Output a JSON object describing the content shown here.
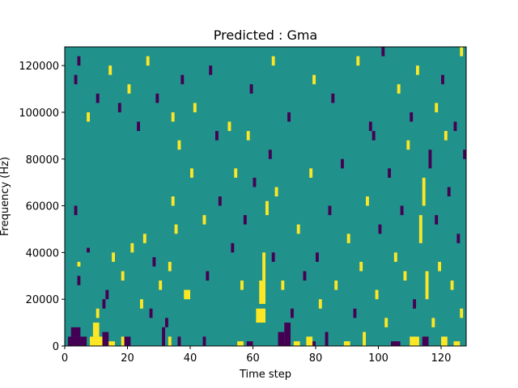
{
  "chart_data": {
    "type": "heatmap",
    "title": "Predicted : Gma",
    "xlabel": "Time step",
    "ylabel": "Frequency (Hz)",
    "xlim": [
      0,
      128
    ],
    "ylim": [
      0,
      128000
    ],
    "x_ticks": [
      0,
      20,
      40,
      60,
      80,
      100,
      120
    ],
    "y_ticks": [
      0,
      20000,
      40000,
      60000,
      80000,
      100000,
      120000
    ],
    "y_tick_labels": [
      "0",
      "20000",
      "40000",
      "60000",
      "80000",
      "100000",
      "120000"
    ],
    "colormap": "viridis",
    "value_levels": [
      -1,
      0,
      1
    ],
    "level_colors": [
      "#440154",
      "#21918c",
      "#fde725"
    ],
    "background_value": 0,
    "grid_cols": 128,
    "grid_rows": 64,
    "row_height_hz": 2000,
    "cells": [
      {
        "x": 1,
        "y": 0,
        "w": 6,
        "h": 2,
        "v": -1
      },
      {
        "x": 2,
        "y": 2,
        "w": 3,
        "h": 2,
        "v": -1
      },
      {
        "x": 8,
        "y": 0,
        "w": 4,
        "h": 2,
        "v": 1
      },
      {
        "x": 9,
        "y": 2,
        "w": 2,
        "h": 3,
        "v": 1
      },
      {
        "x": 12,
        "y": 0,
        "w": 2,
        "h": 3,
        "v": -1
      },
      {
        "x": 14,
        "y": 0,
        "w": 2,
        "h": 1,
        "v": 1
      },
      {
        "x": 18,
        "y": 0,
        "w": 1,
        "h": 2,
        "v": 1
      },
      {
        "x": 19,
        "y": 0,
        "w": 2,
        "h": 2,
        "v": -1
      },
      {
        "x": 31,
        "y": 0,
        "w": 1,
        "h": 4,
        "v": -1
      },
      {
        "x": 33,
        "y": 0,
        "w": 1,
        "h": 2,
        "v": 1
      },
      {
        "x": 36,
        "y": 0,
        "w": 1,
        "h": 2,
        "v": -1
      },
      {
        "x": 44,
        "y": 0,
        "w": 1,
        "h": 2,
        "v": -1
      },
      {
        "x": 55,
        "y": 0,
        "w": 2,
        "h": 1,
        "v": 1
      },
      {
        "x": 58,
        "y": 0,
        "w": 2,
        "h": 1,
        "v": -1
      },
      {
        "x": 61,
        "y": 5,
        "w": 3,
        "h": 3,
        "v": 1
      },
      {
        "x": 62,
        "y": 9,
        "w": 2,
        "h": 5,
        "v": 1
      },
      {
        "x": 63,
        "y": 14,
        "w": 1,
        "h": 6,
        "v": 1
      },
      {
        "x": 68,
        "y": 0,
        "w": 2,
        "h": 3,
        "v": -1
      },
      {
        "x": 70,
        "y": 0,
        "w": 2,
        "h": 5,
        "v": -1
      },
      {
        "x": 73,
        "y": 0,
        "w": 2,
        "h": 1,
        "v": 1
      },
      {
        "x": 77,
        "y": 0,
        "w": 2,
        "h": 2,
        "v": 1
      },
      {
        "x": 79,
        "y": 0,
        "w": 1,
        "h": 1,
        "v": -1
      },
      {
        "x": 83,
        "y": 0,
        "w": 1,
        "h": 3,
        "v": -1
      },
      {
        "x": 89,
        "y": 0,
        "w": 2,
        "h": 1,
        "v": 1
      },
      {
        "x": 95,
        "y": 0,
        "w": 1,
        "h": 3,
        "v": 1
      },
      {
        "x": 104,
        "y": 0,
        "w": 3,
        "h": 1,
        "v": -1
      },
      {
        "x": 110,
        "y": 0,
        "w": 3,
        "h": 2,
        "v": 1
      },
      {
        "x": 114,
        "y": 0,
        "w": 2,
        "h": 2,
        "v": -1
      },
      {
        "x": 120,
        "y": 0,
        "w": 2,
        "h": 2,
        "v": 1
      },
      {
        "x": 124,
        "y": 0,
        "w": 2,
        "h": 1,
        "v": 1
      },
      {
        "x": 4,
        "y": 13,
        "w": 1,
        "h": 2,
        "v": -1
      },
      {
        "x": 4,
        "y": 17,
        "w": 1,
        "h": 1,
        "v": 1
      },
      {
        "x": 7,
        "y": 20,
        "w": 1,
        "h": 1,
        "v": -1
      },
      {
        "x": 3,
        "y": 28,
        "w": 1,
        "h": 2,
        "v": -1
      },
      {
        "x": 10,
        "y": 6,
        "w": 1,
        "h": 2,
        "v": 1
      },
      {
        "x": 12,
        "y": 8,
        "w": 1,
        "h": 2,
        "v": -1
      },
      {
        "x": 13,
        "y": 10,
        "w": 1,
        "h": 2,
        "v": -1
      },
      {
        "x": 15,
        "y": 18,
        "w": 1,
        "h": 2,
        "v": 1
      },
      {
        "x": 18,
        "y": 14,
        "w": 1,
        "h": 2,
        "v": 1
      },
      {
        "x": 21,
        "y": 20,
        "w": 1,
        "h": 2,
        "v": 1
      },
      {
        "x": 24,
        "y": 8,
        "w": 1,
        "h": 2,
        "v": 1
      },
      {
        "x": 25,
        "y": 22,
        "w": 1,
        "h": 2,
        "v": 1
      },
      {
        "x": 27,
        "y": 6,
        "w": 1,
        "h": 2,
        "v": -1
      },
      {
        "x": 28,
        "y": 17,
        "w": 1,
        "h": 2,
        "v": -1
      },
      {
        "x": 30,
        "y": 12,
        "w": 1,
        "h": 2,
        "v": 1
      },
      {
        "x": 32,
        "y": 4,
        "w": 1,
        "h": 2,
        "v": -1
      },
      {
        "x": 33,
        "y": 16,
        "w": 1,
        "h": 2,
        "v": 1
      },
      {
        "x": 34,
        "y": 30,
        "w": 1,
        "h": 2,
        "v": 1
      },
      {
        "x": 35,
        "y": 24,
        "w": 1,
        "h": 2,
        "v": 1
      },
      {
        "x": 36,
        "y": 42,
        "w": 1,
        "h": 2,
        "v": 1
      },
      {
        "x": 38,
        "y": 10,
        "w": 2,
        "h": 2,
        "v": 1
      },
      {
        "x": 40,
        "y": 36,
        "w": 1,
        "h": 2,
        "v": 1
      },
      {
        "x": 44,
        "y": 26,
        "w": 1,
        "h": 2,
        "v": 1
      },
      {
        "x": 45,
        "y": 14,
        "w": 1,
        "h": 2,
        "v": -1
      },
      {
        "x": 48,
        "y": 44,
        "w": 1,
        "h": 2,
        "v": -1
      },
      {
        "x": 49,
        "y": 30,
        "w": 1,
        "h": 2,
        "v": -1
      },
      {
        "x": 53,
        "y": 20,
        "w": 1,
        "h": 2,
        "v": -1
      },
      {
        "x": 54,
        "y": 36,
        "w": 1,
        "h": 2,
        "v": 1
      },
      {
        "x": 56,
        "y": 12,
        "w": 1,
        "h": 2,
        "v": 1
      },
      {
        "x": 57,
        "y": 26,
        "w": 1,
        "h": 2,
        "v": -1
      },
      {
        "x": 58,
        "y": 44,
        "w": 1,
        "h": 2,
        "v": 1
      },
      {
        "x": 60,
        "y": 34,
        "w": 1,
        "h": 2,
        "v": -1
      },
      {
        "x": 64,
        "y": 28,
        "w": 1,
        "h": 3,
        "v": 1
      },
      {
        "x": 65,
        "y": 40,
        "w": 1,
        "h": 2,
        "v": -1
      },
      {
        "x": 66,
        "y": 18,
        "w": 1,
        "h": 2,
        "v": -1
      },
      {
        "x": 67,
        "y": 32,
        "w": 1,
        "h": 2,
        "v": 1
      },
      {
        "x": 69,
        "y": 12,
        "w": 1,
        "h": 2,
        "v": 1
      },
      {
        "x": 72,
        "y": 6,
        "w": 1,
        "h": 2,
        "v": -1
      },
      {
        "x": 74,
        "y": 24,
        "w": 1,
        "h": 2,
        "v": 1
      },
      {
        "x": 76,
        "y": 14,
        "w": 1,
        "h": 2,
        "v": -1
      },
      {
        "x": 78,
        "y": 36,
        "w": 1,
        "h": 2,
        "v": 1
      },
      {
        "x": 80,
        "y": 18,
        "w": 1,
        "h": 2,
        "v": -1
      },
      {
        "x": 81,
        "y": 8,
        "w": 1,
        "h": 2,
        "v": 1
      },
      {
        "x": 84,
        "y": 28,
        "w": 1,
        "h": 2,
        "v": -1
      },
      {
        "x": 86,
        "y": 12,
        "w": 1,
        "h": 2,
        "v": 1
      },
      {
        "x": 88,
        "y": 38,
        "w": 1,
        "h": 2,
        "v": -1
      },
      {
        "x": 90,
        "y": 22,
        "w": 1,
        "h": 2,
        "v": 1
      },
      {
        "x": 92,
        "y": 6,
        "w": 1,
        "h": 2,
        "v": -1
      },
      {
        "x": 94,
        "y": 16,
        "w": 1,
        "h": 2,
        "v": 1
      },
      {
        "x": 96,
        "y": 30,
        "w": 1,
        "h": 2,
        "v": 1
      },
      {
        "x": 98,
        "y": 44,
        "w": 1,
        "h": 2,
        "v": -1
      },
      {
        "x": 99,
        "y": 10,
        "w": 1,
        "h": 2,
        "v": 1
      },
      {
        "x": 100,
        "y": 24,
        "w": 1,
        "h": 2,
        "v": -1
      },
      {
        "x": 102,
        "y": 4,
        "w": 1,
        "h": 2,
        "v": 1
      },
      {
        "x": 103,
        "y": 36,
        "w": 1,
        "h": 2,
        "v": -1
      },
      {
        "x": 105,
        "y": 18,
        "w": 1,
        "h": 2,
        "v": 1
      },
      {
        "x": 107,
        "y": 28,
        "w": 1,
        "h": 2,
        "v": -1
      },
      {
        "x": 108,
        "y": 14,
        "w": 1,
        "h": 2,
        "v": 1
      },
      {
        "x": 109,
        "y": 42,
        "w": 1,
        "h": 2,
        "v": 1
      },
      {
        "x": 111,
        "y": 8,
        "w": 1,
        "h": 2,
        "v": -1
      },
      {
        "x": 113,
        "y": 22,
        "w": 1,
        "h": 6,
        "v": 1
      },
      {
        "x": 114,
        "y": 30,
        "w": 1,
        "h": 6,
        "v": 1
      },
      {
        "x": 115,
        "y": 10,
        "w": 1,
        "h": 6,
        "v": 1
      },
      {
        "x": 116,
        "y": 38,
        "w": 1,
        "h": 4,
        "v": -1
      },
      {
        "x": 117,
        "y": 4,
        "w": 1,
        "h": 2,
        "v": 1
      },
      {
        "x": 118,
        "y": 26,
        "w": 1,
        "h": 2,
        "v": -1
      },
      {
        "x": 119,
        "y": 16,
        "w": 1,
        "h": 2,
        "v": 1
      },
      {
        "x": 121,
        "y": 44,
        "w": 1,
        "h": 2,
        "v": 1
      },
      {
        "x": 122,
        "y": 32,
        "w": 1,
        "h": 2,
        "v": -1
      },
      {
        "x": 123,
        "y": 12,
        "w": 1,
        "h": 2,
        "v": 1
      },
      {
        "x": 125,
        "y": 22,
        "w": 1,
        "h": 2,
        "v": -1
      },
      {
        "x": 126,
        "y": 6,
        "w": 1,
        "h": 2,
        "v": 1
      },
      {
        "x": 127,
        "y": 40,
        "w": 1,
        "h": 2,
        "v": -1
      },
      {
        "x": 3,
        "y": 56,
        "w": 1,
        "h": 2,
        "v": -1
      },
      {
        "x": 4,
        "y": 60,
        "w": 1,
        "h": 2,
        "v": -1
      },
      {
        "x": 7,
        "y": 48,
        "w": 1,
        "h": 2,
        "v": 1
      },
      {
        "x": 10,
        "y": 52,
        "w": 1,
        "h": 2,
        "v": -1
      },
      {
        "x": 14,
        "y": 58,
        "w": 1,
        "h": 2,
        "v": 1
      },
      {
        "x": 17,
        "y": 50,
        "w": 1,
        "h": 2,
        "v": -1
      },
      {
        "x": 20,
        "y": 54,
        "w": 1,
        "h": 2,
        "v": 1
      },
      {
        "x": 23,
        "y": 46,
        "w": 1,
        "h": 2,
        "v": -1
      },
      {
        "x": 26,
        "y": 60,
        "w": 1,
        "h": 2,
        "v": 1
      },
      {
        "x": 29,
        "y": 52,
        "w": 1,
        "h": 2,
        "v": -1
      },
      {
        "x": 34,
        "y": 48,
        "w": 1,
        "h": 2,
        "v": 1
      },
      {
        "x": 37,
        "y": 56,
        "w": 1,
        "h": 2,
        "v": -1
      },
      {
        "x": 41,
        "y": 50,
        "w": 1,
        "h": 2,
        "v": 1
      },
      {
        "x": 46,
        "y": 58,
        "w": 1,
        "h": 2,
        "v": -1
      },
      {
        "x": 52,
        "y": 46,
        "w": 1,
        "h": 2,
        "v": 1
      },
      {
        "x": 59,
        "y": 54,
        "w": 1,
        "h": 2,
        "v": -1
      },
      {
        "x": 66,
        "y": 60,
        "w": 1,
        "h": 2,
        "v": 1
      },
      {
        "x": 71,
        "y": 48,
        "w": 1,
        "h": 2,
        "v": -1
      },
      {
        "x": 79,
        "y": 56,
        "w": 1,
        "h": 2,
        "v": 1
      },
      {
        "x": 85,
        "y": 52,
        "w": 1,
        "h": 2,
        "v": -1
      },
      {
        "x": 93,
        "y": 60,
        "w": 1,
        "h": 2,
        "v": 1
      },
      {
        "x": 97,
        "y": 46,
        "w": 1,
        "h": 2,
        "v": -1
      },
      {
        "x": 101,
        "y": 62,
        "w": 1,
        "h": 2,
        "v": -1
      },
      {
        "x": 106,
        "y": 54,
        "w": 1,
        "h": 2,
        "v": 1
      },
      {
        "x": 110,
        "y": 48,
        "w": 1,
        "h": 2,
        "v": -1
      },
      {
        "x": 112,
        "y": 58,
        "w": 1,
        "h": 2,
        "v": 1
      },
      {
        "x": 118,
        "y": 50,
        "w": 1,
        "h": 2,
        "v": 1
      },
      {
        "x": 120,
        "y": 56,
        "w": 1,
        "h": 2,
        "v": -1
      },
      {
        "x": 124,
        "y": 46,
        "w": 1,
        "h": 2,
        "v": -1
      },
      {
        "x": 126,
        "y": 62,
        "w": 1,
        "h": 2,
        "v": 1
      }
    ]
  }
}
